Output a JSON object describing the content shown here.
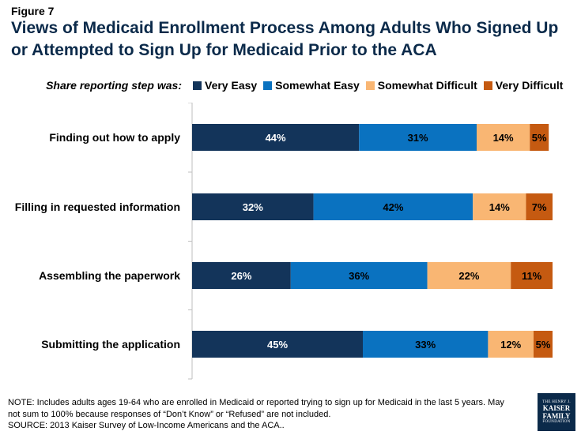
{
  "figure_label": "Figure 7",
  "title_line1": "Views of Medicaid Enrollment Process Among Adults Who Signed Up",
  "title_line2": "or Attempted to Sign Up for Medicaid Prior to the ACA",
  "legend_prefix": "Share reporting step was:",
  "colors": {
    "very_easy": "#13345a",
    "somewhat_easy": "#0a72c0",
    "somewhat_difficult": "#f9b673",
    "very_difficult": "#c55a11"
  },
  "chart_data": {
    "type": "bar",
    "orientation": "horizontal",
    "stacked": true,
    "categories": [
      "Finding out how to apply",
      "Filling in requested information",
      "Assembling the paperwork",
      "Submitting the application"
    ],
    "series": [
      {
        "name": "Very Easy",
        "color": "#13345a",
        "label_color": "#ffffff",
        "values": [
          44,
          32,
          26,
          45
        ]
      },
      {
        "name": "Somewhat Easy",
        "color": "#0a72c0",
        "label_color": "#000000",
        "values": [
          31,
          42,
          36,
          33
        ]
      },
      {
        "name": "Somewhat Difficult",
        "color": "#f9b673",
        "label_color": "#000000",
        "values": [
          14,
          14,
          22,
          12
        ]
      },
      {
        "name": "Very Difficult",
        "color": "#c55a11",
        "label_color": "#000000",
        "values": [
          5,
          7,
          11,
          5
        ]
      }
    ],
    "value_suffix": "%",
    "xlim": [
      0,
      100
    ]
  },
  "footer": {
    "note_line1": "NOTE: Includes adults ages 19-64 who are enrolled in Medicaid or reported trying to sign up for Medicaid in the last 5 years. May",
    "note_line2": "not sum to 100% because responses of “Don’t Know” or “Refused” are not included.",
    "source": "SOURCE: 2013 Kaiser Survey of Low-Income Americans and the ACA.."
  },
  "logo": {
    "line1": "THE HENRY J.",
    "line2": "KAISER",
    "line3": "FAMILY",
    "line4": "FOUNDATION"
  }
}
